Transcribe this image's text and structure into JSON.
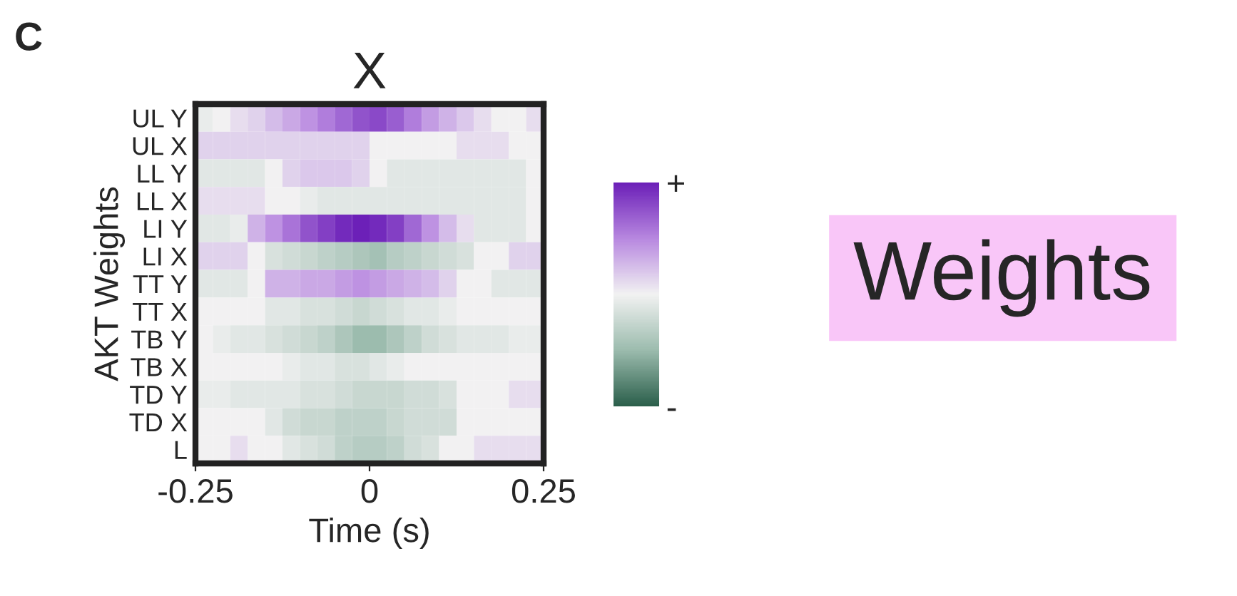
{
  "chart_data": {
    "type": "heatmap",
    "title": "X",
    "xlabel": "Time (s)",
    "ylabel": "AKT Weights",
    "x": [
      -0.2375,
      -0.2125,
      -0.1875,
      -0.1625,
      -0.1375,
      -0.1125,
      -0.0875,
      -0.0625,
      -0.0375,
      -0.0125,
      0.0125,
      0.0375,
      0.0625,
      0.0875,
      0.1125,
      0.1375,
      0.1625,
      0.1875,
      0.2125,
      0.2375
    ],
    "xlim": [
      -0.25,
      0.25
    ],
    "xticks": [
      -0.25,
      0,
      0.25
    ],
    "y_categories": [
      "UL Y",
      "UL X",
      "LL Y",
      "LL X",
      "LI Y",
      "LI X",
      "TT Y",
      "TT X",
      "TB Y",
      "TB X",
      "TD Y",
      "TD X",
      "L"
    ],
    "cells": [
      [
        -0.05,
        0,
        0.1,
        0.15,
        0.25,
        0.35,
        0.45,
        0.55,
        0.65,
        0.75,
        0.8,
        0.7,
        0.55,
        0.4,
        0.3,
        0.2,
        0.1,
        0,
        0,
        0.1
      ],
      [
        0.15,
        0.15,
        0.15,
        0.15,
        0.15,
        0.15,
        0.15,
        0.15,
        0.15,
        0.15,
        0,
        0,
        0,
        0,
        0,
        0.1,
        0.1,
        0.1,
        0,
        0
      ],
      [
        -0.1,
        -0.1,
        -0.1,
        -0.1,
        0,
        0.15,
        0.2,
        0.2,
        0.2,
        0.15,
        0,
        -0.1,
        -0.1,
        -0.1,
        -0.1,
        -0.1,
        -0.1,
        -0.1,
        -0.1,
        0
      ],
      [
        0.1,
        0.1,
        0.1,
        0.1,
        0,
        0,
        -0.05,
        -0.1,
        -0.1,
        -0.1,
        -0.1,
        -0.1,
        -0.1,
        -0.1,
        -0.1,
        -0.1,
        -0.1,
        -0.1,
        -0.1,
        0
      ],
      [
        -0.1,
        -0.1,
        -0.05,
        0.3,
        0.45,
        0.6,
        0.75,
        0.85,
        0.95,
        1.0,
        0.95,
        0.85,
        0.65,
        0.45,
        0.25,
        0.1,
        -0.1,
        -0.1,
        -0.1,
        0
      ],
      [
        0.15,
        0.15,
        0.15,
        0,
        -0.15,
        -0.2,
        -0.25,
        -0.3,
        -0.35,
        -0.4,
        -0.45,
        -0.35,
        -0.3,
        -0.25,
        -0.2,
        -0.15,
        0,
        0,
        0.15,
        0.15
      ],
      [
        -0.1,
        -0.1,
        -0.1,
        0,
        0.3,
        0.3,
        0.35,
        0.35,
        0.4,
        0.45,
        0.4,
        0.35,
        0.3,
        0.25,
        0.15,
        0,
        0,
        -0.1,
        -0.1,
        -0.1
      ],
      [
        0,
        0,
        0,
        0,
        -0.1,
        -0.1,
        -0.15,
        -0.15,
        -0.2,
        -0.25,
        -0.2,
        -0.15,
        -0.1,
        -0.1,
        -0.05,
        0,
        0,
        0,
        0,
        0
      ],
      [
        0,
        -0.05,
        -0.1,
        -0.1,
        -0.15,
        -0.2,
        -0.25,
        -0.3,
        -0.4,
        -0.5,
        -0.5,
        -0.4,
        -0.3,
        -0.2,
        -0.15,
        -0.1,
        -0.1,
        -0.1,
        -0.05,
        -0.05
      ],
      [
        0,
        0,
        0,
        0,
        0,
        -0.05,
        -0.1,
        -0.1,
        -0.15,
        -0.15,
        -0.1,
        -0.05,
        0,
        0,
        0,
        0,
        0,
        0,
        0,
        0
      ],
      [
        -0.05,
        -0.05,
        -0.1,
        -0.1,
        -0.1,
        -0.1,
        -0.15,
        -0.15,
        -0.2,
        -0.25,
        -0.25,
        -0.25,
        -0.2,
        -0.2,
        -0.15,
        0,
        0,
        0,
        0.1,
        0.1
      ],
      [
        0,
        0,
        0,
        0,
        -0.1,
        -0.2,
        -0.25,
        -0.25,
        -0.3,
        -0.3,
        -0.3,
        -0.25,
        -0.2,
        -0.2,
        -0.2,
        0,
        0,
        0,
        0,
        0
      ],
      [
        0,
        0,
        0.1,
        0,
        0,
        -0.1,
        -0.15,
        -0.2,
        -0.3,
        -0.35,
        -0.35,
        -0.3,
        -0.2,
        -0.15,
        0,
        0,
        0.1,
        0.1,
        0.1,
        0.1
      ]
    ],
    "clim": [
      -1,
      1
    ],
    "cticks": [
      {
        "value": -1,
        "label": "-"
      },
      {
        "value": 1,
        "label": "+"
      }
    ],
    "grid": false,
    "annotations": [
      "C",
      "Weights"
    ]
  }
}
